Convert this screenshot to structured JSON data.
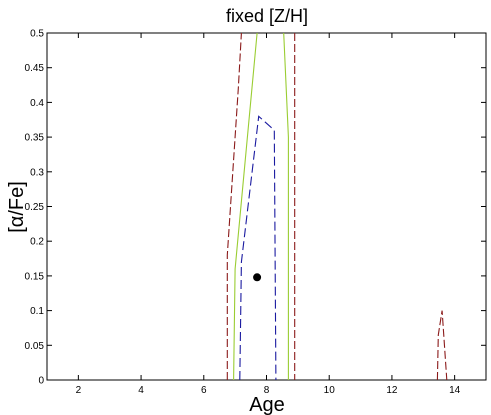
{
  "chart_data": {
    "type": "line",
    "title": "fixed [Z/H]",
    "xlabel": "Age",
    "ylabel": "[α/Fe]",
    "xlim": [
      1,
      15
    ],
    "ylim": [
      0,
      0.5
    ],
    "xticks": [
      2,
      4,
      6,
      8,
      10,
      12,
      14
    ],
    "yticks": [
      0,
      0.05,
      0.1,
      0.15,
      0.2,
      0.25,
      0.3,
      0.35,
      0.4,
      0.45,
      0.5
    ],
    "grid": false,
    "series": [
      {
        "color": "#8b1a1a",
        "dash": "8,3",
        "segments": [
          [
            [
              6.75,
              0
            ],
            [
              6.75,
              0.18
            ],
            [
              7.1,
              0.42
            ],
            [
              7.2,
              0.5
            ]
          ],
          [
            [
              8.9,
              0.5
            ],
            [
              8.9,
              0
            ]
          ],
          [
            [
              13.45,
              0
            ],
            [
              13.48,
              0.065
            ],
            [
              13.6,
              0.1
            ],
            [
              13.75,
              0
            ]
          ]
        ]
      },
      {
        "color": "#9acd32",
        "dash": "",
        "segments": [
          [
            [
              6.95,
              0
            ],
            [
              7.0,
              0.16
            ],
            [
              7.7,
              0.5
            ]
          ],
          [
            [
              8.55,
              0.5
            ],
            [
              8.7,
              0.35
            ],
            [
              8.7,
              0
            ]
          ]
        ]
      },
      {
        "color": "#1a1aa0",
        "dash": "9,4",
        "segments": [
          [
            [
              7.15,
              0
            ],
            [
              7.2,
              0.17
            ],
            [
              7.75,
              0.38
            ],
            [
              8.25,
              0.36
            ],
            [
              8.3,
              0
            ]
          ]
        ]
      }
    ],
    "points": [
      {
        "x": 7.7,
        "y": 0.148,
        "color": "#000000"
      }
    ]
  }
}
